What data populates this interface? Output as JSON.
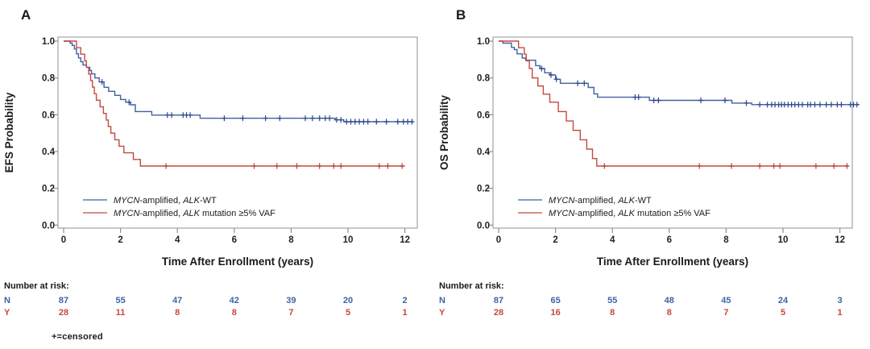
{
  "figure": {
    "background": "#ffffff",
    "footnote": "+=censored"
  },
  "chart_data": [
    {
      "type": "line",
      "subtype": "kaplan_meier_step",
      "panel_label": "A",
      "xlabel": "Time After Enrollment (years)",
      "ylabel": "EFS Probability",
      "xticks": [
        0,
        2,
        4,
        6,
        8,
        10,
        12
      ],
      "yticks": [
        "0.0",
        "0.2",
        "0.4",
        "0.6",
        "0.8",
        "1.0"
      ],
      "xlim": [
        0,
        12.6
      ],
      "ylim": [
        0,
        1.0
      ],
      "grid": false,
      "legend_position": "bottom-left-inside",
      "series": [
        {
          "name": "MYCN-amplified, ALK-WT",
          "label_parts": [
            [
              "MYCN",
              true
            ],
            [
              "-amplified, ",
              false
            ],
            [
              "ALK",
              true
            ],
            [
              "-WT",
              false
            ]
          ],
          "color": "#42619E",
          "censor_color": "#2A478F",
          "steps": [
            [
              0,
              1.0
            ],
            [
              0.23,
              0.989
            ],
            [
              0.3,
              0.977
            ],
            [
              0.38,
              0.957
            ],
            [
              0.45,
              0.931
            ],
            [
              0.52,
              0.909
            ],
            [
              0.6,
              0.888
            ],
            [
              0.68,
              0.87
            ],
            [
              0.8,
              0.858
            ],
            [
              0.92,
              0.84
            ],
            [
              0.98,
              0.822
            ],
            [
              1.1,
              0.8
            ],
            [
              1.25,
              0.778
            ],
            [
              1.42,
              0.749
            ],
            [
              1.58,
              0.727
            ],
            [
              1.8,
              0.705
            ],
            [
              2.0,
              0.683
            ],
            [
              2.18,
              0.668
            ],
            [
              2.35,
              0.654
            ],
            [
              2.52,
              0.617
            ],
            [
              3.1,
              0.598
            ],
            [
              4.8,
              0.581
            ],
            [
              9.55,
              0.572
            ],
            [
              9.85,
              0.562
            ]
          ],
          "censor_times": [
            1.35,
            2.3,
            3.65,
            3.8,
            4.2,
            4.32,
            4.45,
            5.65,
            6.3,
            7.1,
            7.6,
            8.5,
            8.75,
            9.0,
            9.2,
            9.35,
            9.6,
            9.75,
            9.95,
            10.1,
            10.25,
            10.4,
            10.55,
            10.7,
            11.0,
            11.35,
            11.75,
            11.95,
            12.1,
            12.25
          ],
          "end_time": 12.3
        },
        {
          "name": "MYCN-amplified, ALK mutation ≥5% VAF",
          "label_parts": [
            [
              "MYCN",
              true
            ],
            [
              "-amplified, ",
              false
            ],
            [
              "ALK",
              true
            ],
            [
              " mutation ≥5% VAF",
              false
            ]
          ],
          "color": "#C5493F",
          "censor_color": "#B5443B",
          "steps": [
            [
              0,
              1.0
            ],
            [
              0.45,
              0.964
            ],
            [
              0.6,
              0.929
            ],
            [
              0.74,
              0.893
            ],
            [
              0.8,
              0.857
            ],
            [
              0.88,
              0.821
            ],
            [
              0.95,
              0.786
            ],
            [
              1.01,
              0.75
            ],
            [
              1.08,
              0.714
            ],
            [
              1.15,
              0.679
            ],
            [
              1.28,
              0.643
            ],
            [
              1.4,
              0.607
            ],
            [
              1.5,
              0.571
            ],
            [
              1.57,
              0.536
            ],
            [
              1.66,
              0.5
            ],
            [
              1.8,
              0.464
            ],
            [
              1.95,
              0.429
            ],
            [
              2.12,
              0.393
            ],
            [
              2.45,
              0.357
            ],
            [
              2.7,
              0.321
            ]
          ],
          "censor_times": [
            3.6,
            6.7,
            7.5,
            8.2,
            9.0,
            9.5,
            9.75,
            11.1,
            11.4,
            11.9
          ],
          "end_time": 12.0
        }
      ],
      "number_at_risk": {
        "title": "Number at risk:",
        "rows": [
          {
            "label": "N",
            "color": "#4063A4",
            "values": [
              "87",
              "55",
              "47",
              "42",
              "39",
              "20",
              "2"
            ]
          },
          {
            "label": "Y",
            "color": "#C4493F",
            "values": [
              "28",
              "11",
              "8",
              "8",
              "7",
              "5",
              "1"
            ]
          }
        ]
      }
    },
    {
      "type": "line",
      "subtype": "kaplan_meier_step",
      "panel_label": "B",
      "xlabel": "Time After Enrollment (years)",
      "ylabel": "OS Probability",
      "xticks": [
        0,
        2,
        4,
        6,
        8,
        10,
        12
      ],
      "yticks": [
        "0.0",
        "0.2",
        "0.4",
        "0.6",
        "0.8",
        "1.0"
      ],
      "xlim": [
        0,
        12.6
      ],
      "ylim": [
        0,
        1.0
      ],
      "grid": false,
      "legend_position": "bottom-left-inside",
      "series": [
        {
          "name": "MYCN-amplified, ALK-WT",
          "label_parts": [
            [
              "MYCN",
              true
            ],
            [
              "-amplified, ",
              false
            ],
            [
              "ALK",
              true
            ],
            [
              "-WT",
              false
            ]
          ],
          "color": "#42619E",
          "censor_color": "#2A478F",
          "steps": [
            [
              0,
              1.0
            ],
            [
              0.15,
              0.989
            ],
            [
              0.45,
              0.966
            ],
            [
              0.55,
              0.954
            ],
            [
              0.65,
              0.931
            ],
            [
              0.83,
              0.908
            ],
            [
              0.95,
              0.896
            ],
            [
              1.3,
              0.867
            ],
            [
              1.45,
              0.851
            ],
            [
              1.62,
              0.828
            ],
            [
              1.8,
              0.816
            ],
            [
              2.0,
              0.793
            ],
            [
              2.17,
              0.771
            ],
            [
              3.15,
              0.748
            ],
            [
              3.35,
              0.713
            ],
            [
              3.48,
              0.695
            ],
            [
              5.3,
              0.678
            ],
            [
              8.2,
              0.663
            ],
            [
              8.9,
              0.655
            ]
          ],
          "censor_times": [
            1.51,
            1.84,
            2.03,
            2.78,
            3.01,
            4.8,
            4.92,
            5.46,
            5.62,
            7.11,
            7.96,
            8.71,
            9.18,
            9.45,
            9.6,
            9.72,
            9.85,
            9.95,
            10.05,
            10.18,
            10.3,
            10.42,
            10.55,
            10.68,
            10.87,
            10.97,
            11.12,
            11.3,
            11.52,
            11.7,
            11.91,
            12.05,
            12.37,
            12.48,
            12.6
          ],
          "end_time": 12.68
        },
        {
          "name": "MYCN-amplified, ALK mutation ≥5% VAF",
          "label_parts": [
            [
              "MYCN",
              true
            ],
            [
              "-amplified, ",
              false
            ],
            [
              "ALK",
              true
            ],
            [
              " mutation ≥5% VAF",
              false
            ]
          ],
          "color": "#C5493F",
          "censor_color": "#B5443B",
          "steps": [
            [
              0,
              1.0
            ],
            [
              0.7,
              0.964
            ],
            [
              0.9,
              0.929
            ],
            [
              0.97,
              0.893
            ],
            [
              1.08,
              0.851
            ],
            [
              1.18,
              0.8
            ],
            [
              1.38,
              0.756
            ],
            [
              1.57,
              0.712
            ],
            [
              1.8,
              0.668
            ],
            [
              2.1,
              0.617
            ],
            [
              2.38,
              0.566
            ],
            [
              2.62,
              0.515
            ],
            [
              2.87,
              0.464
            ],
            [
              3.1,
              0.413
            ],
            [
              3.3,
              0.362
            ],
            [
              3.45,
              0.321
            ]
          ],
          "censor_times": [
            3.72,
            7.06,
            8.19,
            9.18,
            9.68,
            9.89,
            11.16,
            11.79,
            12.25
          ],
          "end_time": 12.3
        }
      ],
      "number_at_risk": {
        "title": "Number at risk:",
        "rows": [
          {
            "label": "N",
            "color": "#4063A4",
            "values": [
              "87",
              "65",
              "55",
              "48",
              "45",
              "24",
              "3"
            ]
          },
          {
            "label": "Y",
            "color": "#C4493F",
            "values": [
              "28",
              "16",
              "8",
              "8",
              "7",
              "5",
              "1"
            ]
          }
        ]
      }
    }
  ]
}
